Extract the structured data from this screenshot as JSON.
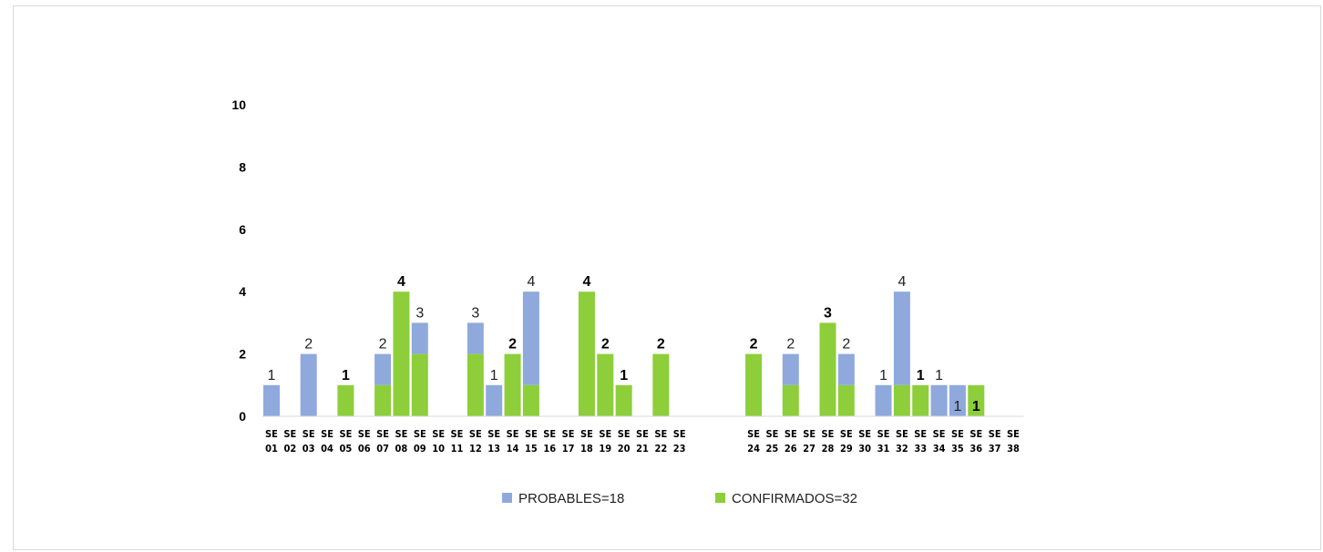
{
  "chart_data": {
    "type": "bar",
    "stacked": true,
    "title": "",
    "xlabel": "",
    "ylabel": "",
    "ylim": [
      0,
      10
    ],
    "yticks": [
      "0",
      "2",
      "4",
      "6",
      "8",
      "10"
    ],
    "grid": false,
    "legend_position": "bottom",
    "categories": [
      [
        "SE",
        "01"
      ],
      [
        "SE",
        "02"
      ],
      [
        "SE",
        "03"
      ],
      [
        "SE",
        "04"
      ],
      [
        "SE",
        "05"
      ],
      [
        "SE",
        "06"
      ],
      [
        "SE",
        "07"
      ],
      [
        "SE",
        "08"
      ],
      [
        "SE",
        "09"
      ],
      [
        "SE",
        "10"
      ],
      [
        "SE",
        "11"
      ],
      [
        "SE",
        "12"
      ],
      [
        "SE",
        "13"
      ],
      [
        "SE",
        "14"
      ],
      [
        "SE",
        "15"
      ],
      [
        "SE",
        "16"
      ],
      [
        "SE",
        "17"
      ],
      [
        "SE",
        "18"
      ],
      [
        "SE",
        "19"
      ],
      [
        "SE",
        "20"
      ],
      [
        "SE",
        "21"
      ],
      [
        "SE",
        "22"
      ],
      [
        "SE",
        "23"
      ],
      null,
      null,
      null,
      [
        "SE",
        "24"
      ],
      [
        "SE",
        "25"
      ],
      [
        "SE",
        "26"
      ],
      [
        "SE",
        "27"
      ],
      [
        "SE",
        "28"
      ],
      [
        "SE",
        "29"
      ],
      [
        "SE",
        "30"
      ],
      [
        "SE",
        "31"
      ],
      [
        "SE",
        "32"
      ],
      [
        "SE",
        "33"
      ],
      [
        "SE",
        "34"
      ],
      [
        "SE",
        "35"
      ],
      [
        "SE",
        "36"
      ],
      [
        "SE",
        "37"
      ],
      [
        "SE",
        "38"
      ]
    ],
    "series": [
      {
        "name": "CONFIRMADOS=32",
        "color": "#8dce3a",
        "values": [
          0,
          0,
          0,
          0,
          1,
          0,
          1,
          4,
          2,
          0,
          0,
          2,
          0,
          2,
          1,
          0,
          0,
          4,
          2,
          1,
          0,
          2,
          0,
          0,
          0,
          0,
          2,
          0,
          1,
          0,
          3,
          1,
          0,
          0,
          1,
          1,
          0,
          0,
          1,
          0,
          0
        ]
      },
      {
        "name": "PROBABLES=18",
        "color": "#8fa9dc",
        "values": [
          1,
          0,
          2,
          0,
          0,
          0,
          1,
          0,
          1,
          0,
          0,
          1,
          1,
          0,
          3,
          0,
          0,
          0,
          0,
          0,
          0,
          0,
          0,
          0,
          0,
          0,
          0,
          0,
          1,
          0,
          0,
          1,
          0,
          1,
          3,
          0,
          1,
          1,
          0,
          0,
          0
        ]
      }
    ],
    "data_labels": [
      {
        "index": 0,
        "text": "1",
        "bold": false
      },
      {
        "index": 2,
        "text": "2",
        "bold": false
      },
      {
        "index": 4,
        "text": "1",
        "bold": true
      },
      {
        "index": 6,
        "text": "2",
        "bold": false
      },
      {
        "index": 7,
        "text": "4",
        "bold": true
      },
      {
        "index": 8,
        "text": "3",
        "bold": false
      },
      {
        "index": 11,
        "text": "3",
        "bold": false
      },
      {
        "index": 12,
        "text": "1",
        "bold": false
      },
      {
        "index": 13,
        "text": "2",
        "bold": true
      },
      {
        "index": 14,
        "text": "4",
        "bold": false
      },
      {
        "index": 17,
        "text": "4",
        "bold": true
      },
      {
        "index": 18,
        "text": "2",
        "bold": true
      },
      {
        "index": 19,
        "text": "1",
        "bold": true
      },
      {
        "index": 21,
        "text": "2",
        "bold": true
      },
      {
        "index": 26,
        "text": "2",
        "bold": true
      },
      {
        "index": 28,
        "text": "2",
        "bold": false
      },
      {
        "index": 30,
        "text": "3",
        "bold": true
      },
      {
        "index": 31,
        "text": "2",
        "bold": false
      },
      {
        "index": 33,
        "text": "1",
        "bold": false
      },
      {
        "index": 34,
        "text": "4",
        "bold": false
      },
      {
        "index": 35,
        "text": "1",
        "bold": true
      },
      {
        "index": 36,
        "text": "1",
        "bold": false
      },
      {
        "index": 37,
        "text": "1",
        "bold": false,
        "inside": true
      },
      {
        "index": 38,
        "text": "1",
        "bold": true,
        "inside": true
      }
    ],
    "legend": [
      {
        "label": "PROBABLES=18",
        "color": "#8fa9dc"
      },
      {
        "label": "CONFIRMADOS=32",
        "color": "#8dce3a"
      }
    ]
  }
}
